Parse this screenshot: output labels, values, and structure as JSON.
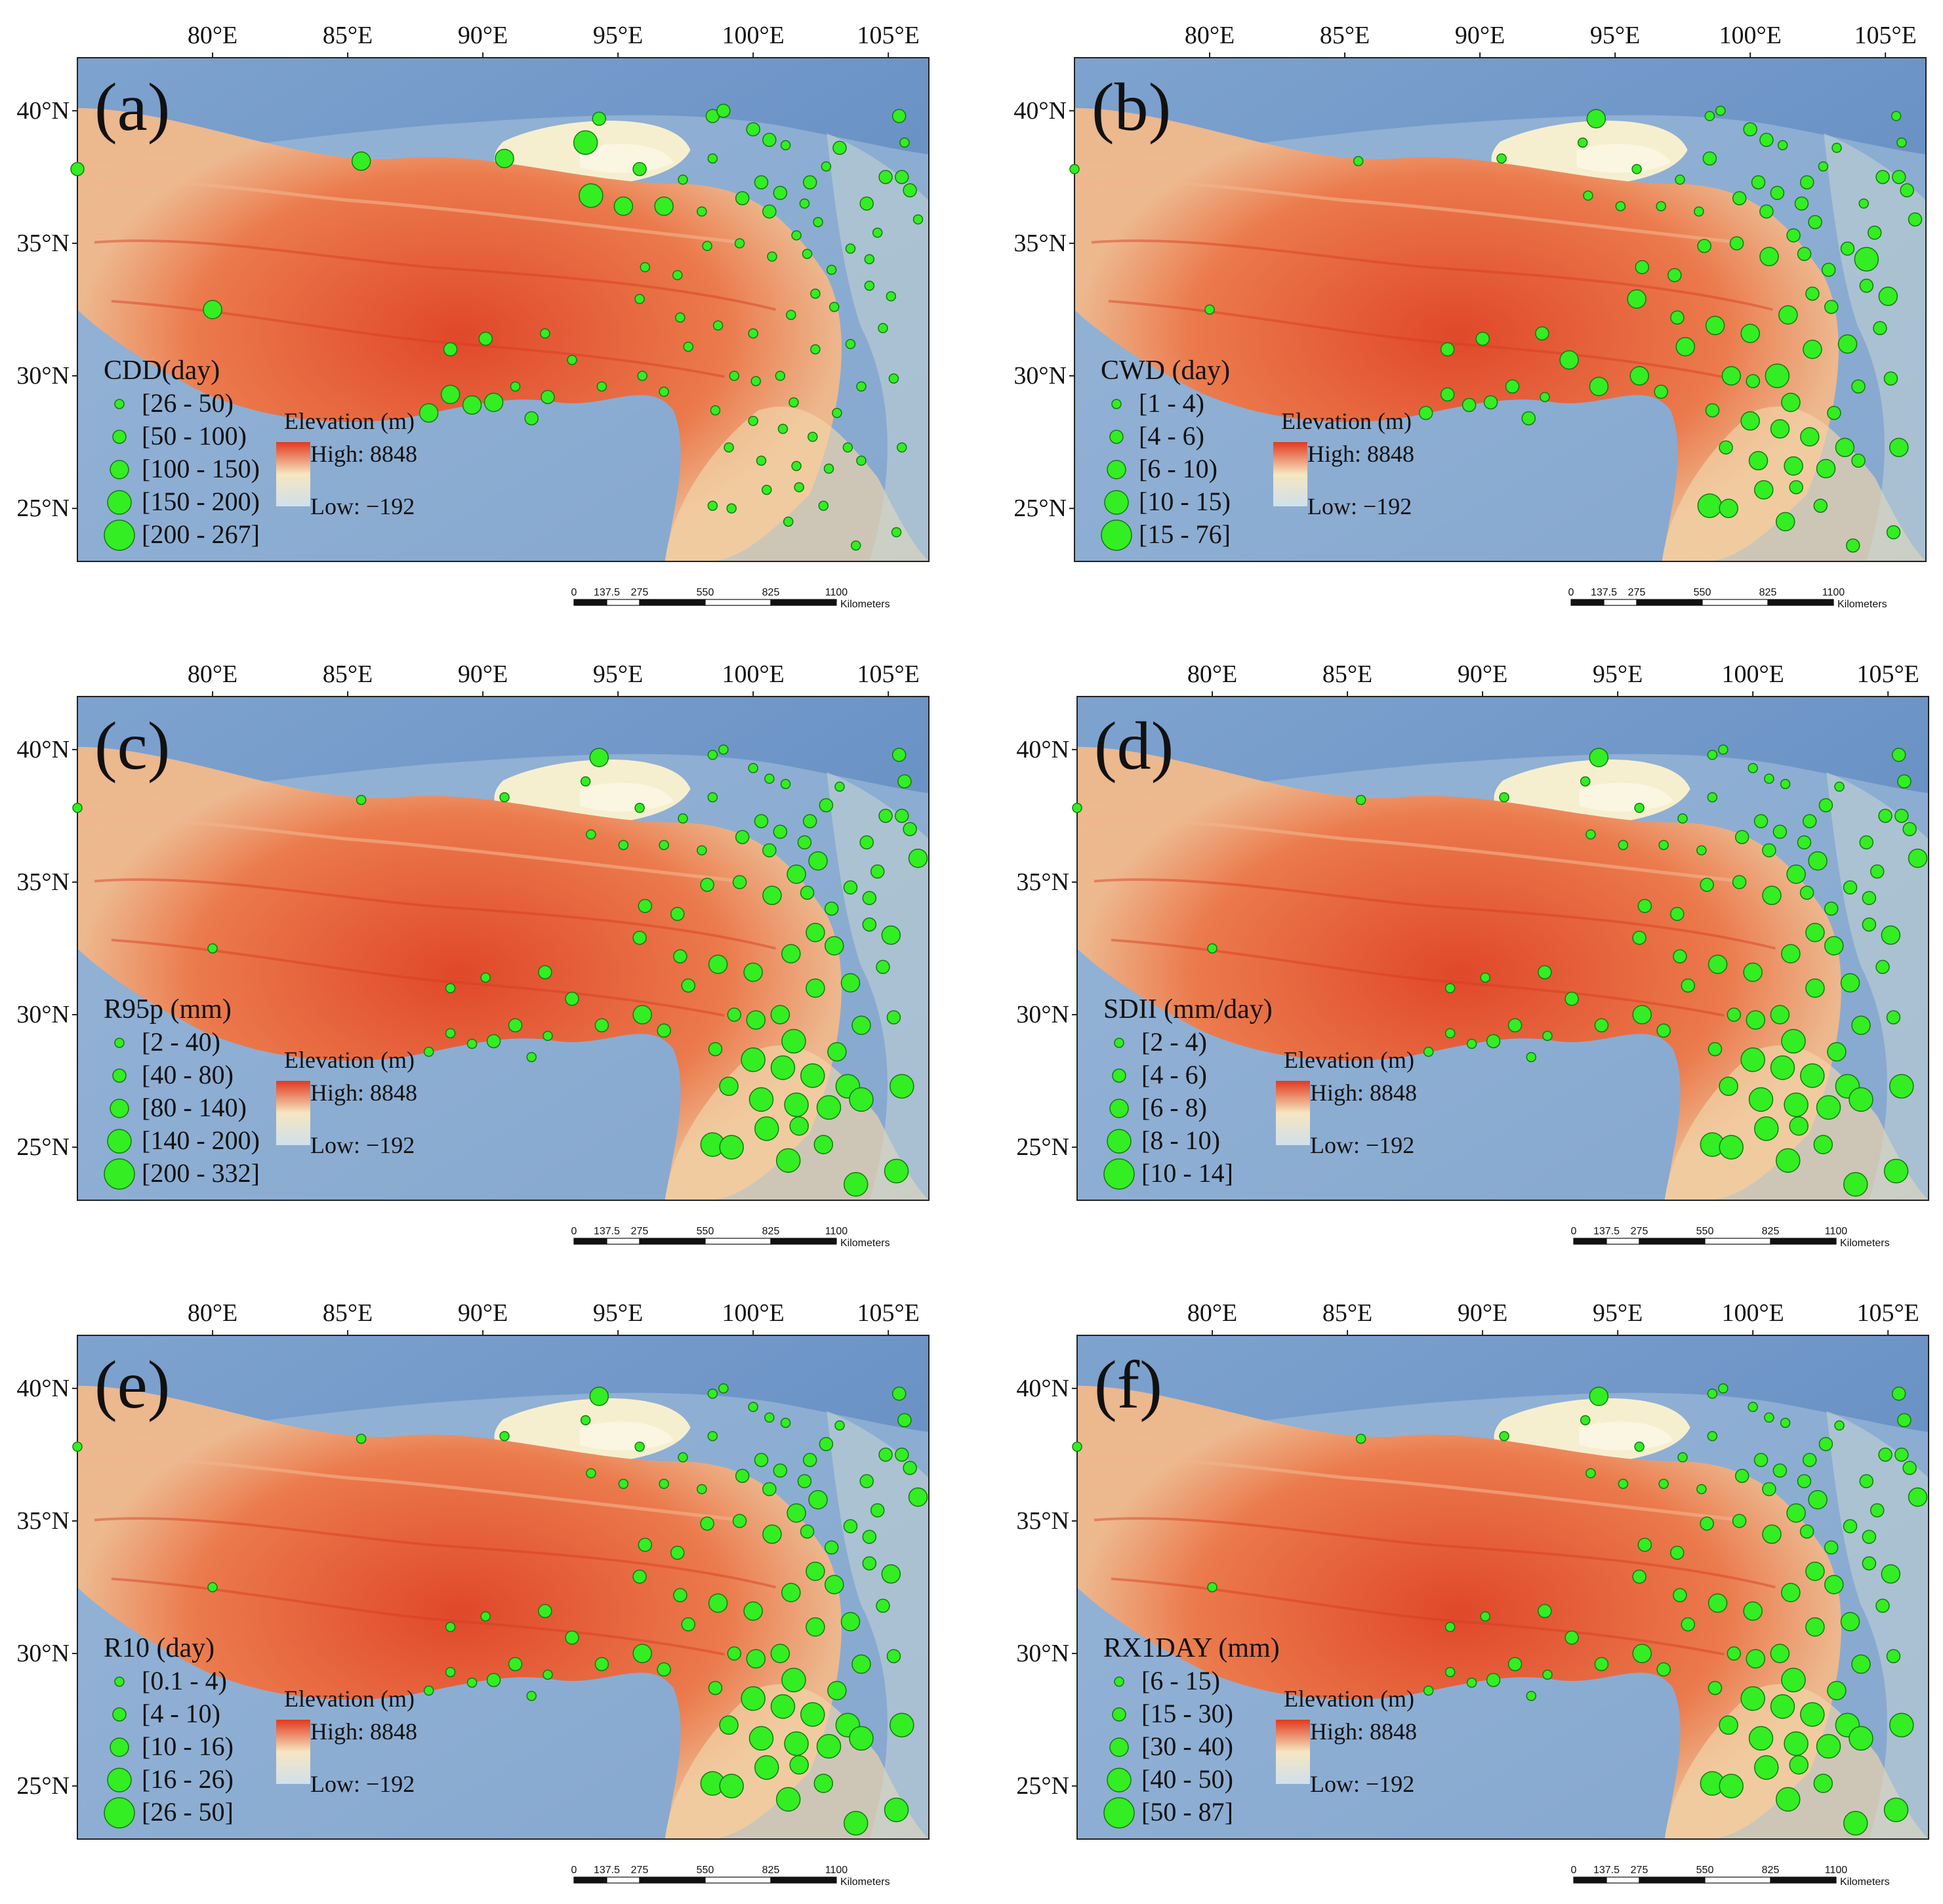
{
  "figure": {
    "lon_ticks": [
      "80°E",
      "85°E",
      "90°E",
      "95°E",
      "100°E",
      "105°E"
    ],
    "lat_ticks": [
      "40°N",
      "35°N",
      "30°N",
      "25°N"
    ],
    "lon_range": [
      75,
      106.5
    ],
    "lat_range": [
      23,
      42
    ],
    "elevation_legend": {
      "title": "Elevation (m)",
      "high": "High: 8848",
      "low": "Low: −192"
    },
    "scalebar": {
      "ticks": [
        "0",
        "137.5",
        "275",
        "550",
        "825",
        "1100"
      ],
      "unit": "Kilometers"
    },
    "colors": {
      "station_fill": "#33ee22",
      "station_stroke": "#137a10",
      "ramp_high": "#e23a1f",
      "ramp_mid": "#f6e6c0",
      "ramp_low": "#cfe0ec"
    }
  },
  "panels": [
    {
      "label": "(a)",
      "legend_title": "CDD(day)",
      "classes": [
        "[26 - 50)",
        "[50 - 100)",
        "[100 - 150)",
        "[150 - 200)",
        "[200 - 267]"
      ]
    },
    {
      "label": "(b)",
      "legend_title": "CWD (day)",
      "classes": [
        "[1 - 4)",
        "[4 - 6)",
        "[6 - 10)",
        "[10 - 15)",
        "[15 - 76]"
      ]
    },
    {
      "label": "(c)",
      "legend_title": "R95p (mm)",
      "classes": [
        "[2 - 40)",
        "[40 - 80)",
        "[80 - 140)",
        "[140 - 200)",
        "[200 - 332]"
      ]
    },
    {
      "label": "(d)",
      "legend_title": "SDII (mm/day)",
      "classes": [
        "[2 - 4)",
        "[4 - 6)",
        "[6 - 8)",
        "[8 - 10)",
        "[10 - 14]"
      ]
    },
    {
      "label": "(e)",
      "legend_title": "R10 (day)",
      "classes": [
        "[0.1 - 4)",
        "[4 - 10)",
        "[10 - 16)",
        "[16 - 26)",
        "[26 - 50]"
      ]
    },
    {
      "label": "(f)",
      "legend_title": "RX1DAY (mm)",
      "classes": [
        "[6 - 15)",
        "[15 - 30)",
        "[30 - 40)",
        "[40 - 50)",
        "[50 - 87]"
      ]
    }
  ],
  "stations": [
    {
      "lon": 75.0,
      "lat": 37.8,
      "cls": [
        2,
        1,
        1,
        1,
        1,
        1
      ]
    },
    {
      "lon": 80.0,
      "lat": 32.5,
      "cls": [
        3,
        1,
        1,
        1,
        1,
        1
      ]
    },
    {
      "lon": 85.5,
      "lat": 38.1,
      "cls": [
        3,
        1,
        1,
        1,
        1,
        1
      ]
    },
    {
      "lon": 90.8,
      "lat": 38.2,
      "cls": [
        3,
        1,
        1,
        1,
        1,
        1
      ]
    },
    {
      "lon": 93.8,
      "lat": 38.8,
      "cls": [
        4,
        1,
        1,
        1,
        1,
        1
      ]
    },
    {
      "lon": 94.3,
      "lat": 39.7,
      "cls": [
        2,
        3,
        3,
        3,
        3,
        3
      ]
    },
    {
      "lon": 94.0,
      "lat": 36.8,
      "cls": [
        4,
        1,
        1,
        1,
        1,
        1
      ]
    },
    {
      "lon": 95.2,
      "lat": 36.4,
      "cls": [
        3,
        1,
        1,
        1,
        1,
        1
      ]
    },
    {
      "lon": 96.7,
      "lat": 36.4,
      "cls": [
        3,
        1,
        1,
        1,
        1,
        1
      ]
    },
    {
      "lon": 95.8,
      "lat": 37.8,
      "cls": [
        2,
        1,
        1,
        1,
        1,
        1
      ]
    },
    {
      "lon": 97.4,
      "lat": 37.4,
      "cls": [
        1,
        1,
        1,
        1,
        1,
        1
      ]
    },
    {
      "lon": 98.1,
      "lat": 36.2,
      "cls": [
        1,
        1,
        1,
        1,
        1,
        1
      ]
    },
    {
      "lon": 98.5,
      "lat": 39.8,
      "cls": [
        2,
        1,
        1,
        1,
        1,
        1
      ]
    },
    {
      "lon": 98.9,
      "lat": 40.0,
      "cls": [
        2,
        1,
        1,
        1,
        1,
        1
      ]
    },
    {
      "lon": 100.0,
      "lat": 39.3,
      "cls": [
        2,
        2,
        1,
        1,
        1,
        1
      ]
    },
    {
      "lon": 100.6,
      "lat": 38.9,
      "cls": [
        2,
        2,
        1,
        1,
        1,
        1
      ]
    },
    {
      "lon": 101.2,
      "lat": 38.7,
      "cls": [
        1,
        1,
        1,
        1,
        1,
        1
      ]
    },
    {
      "lon": 102.7,
      "lat": 37.9,
      "cls": [
        1,
        1,
        2,
        2,
        2,
        2
      ]
    },
    {
      "lon": 103.2,
      "lat": 38.6,
      "cls": [
        2,
        1,
        1,
        1,
        1,
        1
      ]
    },
    {
      "lon": 104.2,
      "lat": 36.5,
      "cls": [
        2,
        1,
        2,
        2,
        2,
        2
      ]
    },
    {
      "lon": 104.9,
      "lat": 37.5,
      "cls": [
        2,
        2,
        2,
        2,
        2,
        2
      ]
    },
    {
      "lon": 105.5,
      "lat": 37.5,
      "cls": [
        2,
        2,
        2,
        2,
        2,
        2
      ]
    },
    {
      "lon": 105.4,
      "lat": 39.8,
      "cls": [
        2,
        1,
        2,
        2,
        2,
        2
      ]
    },
    {
      "lon": 105.6,
      "lat": 38.8,
      "cls": [
        1,
        1,
        2,
        2,
        2,
        2
      ]
    },
    {
      "lon": 105.8,
      "lat": 37.0,
      "cls": [
        2,
        2,
        2,
        2,
        2,
        2
      ]
    },
    {
      "lon": 106.1,
      "lat": 35.9,
      "cls": [
        1,
        2,
        3,
        3,
        3,
        3
      ]
    },
    {
      "lon": 104.6,
      "lat": 35.4,
      "cls": [
        1,
        2,
        2,
        2,
        2,
        2
      ]
    },
    {
      "lon": 103.6,
      "lat": 34.8,
      "cls": [
        1,
        2,
        2,
        2,
        2,
        2
      ]
    },
    {
      "lon": 104.3,
      "lat": 33.4,
      "cls": [
        1,
        2,
        2,
        2,
        2,
        2
      ]
    },
    {
      "lon": 102.9,
      "lat": 34.0,
      "cls": [
        1,
        2,
        2,
        2,
        2,
        2
      ]
    },
    {
      "lon": 101.6,
      "lat": 35.3,
      "cls": [
        1,
        2,
        3,
        3,
        3,
        3
      ]
    },
    {
      "lon": 101.9,
      "lat": 36.5,
      "cls": [
        1,
        2,
        2,
        2,
        2,
        2
      ]
    },
    {
      "lon": 100.6,
      "lat": 36.2,
      "cls": [
        2,
        2,
        2,
        2,
        2,
        2
      ]
    },
    {
      "lon": 99.6,
      "lat": 36.7,
      "cls": [
        2,
        2,
        2,
        2,
        2,
        2
      ]
    },
    {
      "lon": 98.5,
      "lat": 38.2,
      "cls": [
        1,
        2,
        1,
        1,
        1,
        1
      ]
    },
    {
      "lon": 100.3,
      "lat": 37.3,
      "cls": [
        2,
        2,
        2,
        2,
        2,
        2
      ]
    },
    {
      "lon": 101.0,
      "lat": 36.9,
      "cls": [
        2,
        2,
        2,
        2,
        2,
        2
      ]
    },
    {
      "lon": 102.1,
      "lat": 37.3,
      "cls": [
        2,
        2,
        2,
        2,
        2,
        2
      ]
    },
    {
      "lon": 102.4,
      "lat": 35.8,
      "cls": [
        1,
        2,
        3,
        3,
        3,
        3
      ]
    },
    {
      "lon": 102.0,
      "lat": 34.6,
      "cls": [
        1,
        2,
        2,
        2,
        2,
        2
      ]
    },
    {
      "lon": 100.7,
      "lat": 34.5,
      "cls": [
        1,
        3,
        3,
        3,
        3,
        3
      ]
    },
    {
      "lon": 99.5,
      "lat": 35.0,
      "cls": [
        1,
        2,
        2,
        2,
        2,
        2
      ]
    },
    {
      "lon": 98.3,
      "lat": 34.9,
      "cls": [
        1,
        2,
        2,
        2,
        2,
        2
      ]
    },
    {
      "lon": 97.2,
      "lat": 33.8,
      "cls": [
        1,
        2,
        2,
        2,
        2,
        2
      ]
    },
    {
      "lon": 96.0,
      "lat": 34.1,
      "cls": [
        1,
        2,
        2,
        2,
        2,
        2
      ]
    },
    {
      "lon": 95.8,
      "lat": 32.9,
      "cls": [
        1,
        3,
        2,
        2,
        2,
        2
      ]
    },
    {
      "lon": 97.3,
      "lat": 32.2,
      "cls": [
        1,
        2,
        2,
        2,
        2,
        2
      ]
    },
    {
      "lon": 98.7,
      "lat": 31.9,
      "cls": [
        1,
        3,
        3,
        3,
        3,
        3
      ]
    },
    {
      "lon": 100.0,
      "lat": 31.6,
      "cls": [
        1,
        3,
        3,
        3,
        3,
        3
      ]
    },
    {
      "lon": 101.4,
      "lat": 32.3,
      "cls": [
        1,
        3,
        3,
        3,
        3,
        3
      ]
    },
    {
      "lon": 102.3,
      "lat": 33.1,
      "cls": [
        1,
        2,
        3,
        3,
        3,
        3
      ]
    },
    {
      "lon": 103.0,
      "lat": 32.6,
      "cls": [
        1,
        2,
        3,
        3,
        3,
        3
      ]
    },
    {
      "lon": 103.6,
      "lat": 31.2,
      "cls": [
        1,
        3,
        3,
        3,
        3,
        3
      ]
    },
    {
      "lon": 102.3,
      "lat": 31.0,
      "cls": [
        1,
        3,
        3,
        3,
        3,
        3
      ]
    },
    {
      "lon": 101.0,
      "lat": 30.0,
      "cls": [
        1,
        4,
        3,
        3,
        3,
        3
      ]
    },
    {
      "lon": 99.3,
      "lat": 30.0,
      "cls": [
        1,
        3,
        2,
        2,
        2,
        2
      ]
    },
    {
      "lon": 97.6,
      "lat": 31.1,
      "cls": [
        1,
        3,
        2,
        2,
        2,
        2
      ]
    },
    {
      "lon": 95.9,
      "lat": 30.0,
      "cls": [
        1,
        3,
        3,
        3,
        3,
        3
      ]
    },
    {
      "lon": 94.4,
      "lat": 29.6,
      "cls": [
        1,
        3,
        2,
        2,
        2,
        2
      ]
    },
    {
      "lon": 93.3,
      "lat": 30.6,
      "cls": [
        1,
        3,
        2,
        2,
        2,
        2
      ]
    },
    {
      "lon": 92.3,
      "lat": 31.6,
      "cls": [
        1,
        2,
        2,
        2,
        2,
        2
      ]
    },
    {
      "lon": 91.2,
      "lat": 29.6,
      "cls": [
        1,
        2,
        2,
        2,
        2,
        2
      ]
    },
    {
      "lon": 90.4,
      "lat": 29.0,
      "cls": [
        3,
        2,
        2,
        2,
        2,
        2
      ]
    },
    {
      "lon": 89.6,
      "lat": 28.9,
      "cls": [
        3,
        2,
        1,
        1,
        1,
        1
      ]
    },
    {
      "lon": 88.8,
      "lat": 29.3,
      "cls": [
        3,
        2,
        1,
        1,
        1,
        1
      ]
    },
    {
      "lon": 88.0,
      "lat": 28.6,
      "cls": [
        3,
        2,
        1,
        1,
        1,
        1
      ]
    },
    {
      "lon": 88.8,
      "lat": 31.0,
      "cls": [
        2,
        2,
        1,
        1,
        1,
        1
      ]
    },
    {
      "lon": 90.1,
      "lat": 31.4,
      "cls": [
        2,
        2,
        1,
        1,
        1,
        1
      ]
    },
    {
      "lon": 91.8,
      "lat": 28.4,
      "cls": [
        2,
        2,
        1,
        1,
        1,
        1
      ]
    },
    {
      "lon": 92.4,
      "lat": 29.2,
      "cls": [
        2,
        1,
        1,
        1,
        1,
        1
      ]
    },
    {
      "lon": 100.0,
      "lat": 28.3,
      "cls": [
        1,
        3,
        4,
        4,
        4,
        4
      ]
    },
    {
      "lon": 101.1,
      "lat": 28.0,
      "cls": [
        1,
        3,
        4,
        4,
        4,
        4
      ]
    },
    {
      "lon": 102.2,
      "lat": 27.7,
      "cls": [
        1,
        3,
        4,
        4,
        4,
        4
      ]
    },
    {
      "lon": 103.1,
      "lat": 28.6,
      "cls": [
        1,
        2,
        3,
        3,
        3,
        3
      ]
    },
    {
      "lon": 103.5,
      "lat": 27.3,
      "cls": [
        1,
        3,
        4,
        4,
        4,
        4
      ]
    },
    {
      "lon": 104.0,
      "lat": 26.8,
      "cls": [
        1,
        2,
        4,
        4,
        4,
        4
      ]
    },
    {
      "lon": 102.8,
      "lat": 26.5,
      "cls": [
        1,
        3,
        4,
        4,
        4,
        4
      ]
    },
    {
      "lon": 101.6,
      "lat": 26.6,
      "cls": [
        1,
        3,
        4,
        4,
        4,
        4
      ]
    },
    {
      "lon": 100.3,
      "lat": 26.8,
      "cls": [
        1,
        3,
        4,
        4,
        4,
        4
      ]
    },
    {
      "lon": 99.1,
      "lat": 27.3,
      "cls": [
        1,
        2,
        3,
        3,
        3,
        3
      ]
    },
    {
      "lon": 100.5,
      "lat": 25.7,
      "cls": [
        1,
        3,
        4,
        4,
        4,
        4
      ]
    },
    {
      "lon": 101.7,
      "lat": 25.8,
      "cls": [
        1,
        2,
        3,
        3,
        3,
        3
      ]
    },
    {
      "lon": 98.5,
      "lat": 25.1,
      "cls": [
        1,
        4,
        4,
        4,
        4,
        4
      ]
    },
    {
      "lon": 99.2,
      "lat": 25.0,
      "cls": [
        1,
        3,
        4,
        4,
        4,
        4
      ]
    },
    {
      "lon": 101.3,
      "lat": 24.5,
      "cls": [
        1,
        3,
        4,
        4,
        4,
        4
      ]
    },
    {
      "lon": 102.6,
      "lat": 25.1,
      "cls": [
        1,
        2,
        3,
        3,
        3,
        3
      ]
    },
    {
      "lon": 103.8,
      "lat": 23.6,
      "cls": [
        1,
        2,
        4,
        4,
        4,
        4
      ]
    },
    {
      "lon": 105.3,
      "lat": 24.1,
      "cls": [
        1,
        2,
        4,
        4,
        4,
        4
      ]
    },
    {
      "lon": 105.5,
      "lat": 27.3,
      "cls": [
        1,
        3,
        4,
        4,
        4,
        4
      ]
    },
    {
      "lon": 101.5,
      "lat": 29.0,
      "cls": [
        1,
        3,
        4,
        4,
        4,
        4
      ]
    },
    {
      "lon": 100.1,
      "lat": 29.8,
      "cls": [
        1,
        2,
        3,
        3,
        3,
        3
      ]
    },
    {
      "lon": 98.6,
      "lat": 28.7,
      "cls": [
        1,
        2,
        2,
        2,
        2,
        2
      ]
    },
    {
      "lon": 96.7,
      "lat": 29.4,
      "cls": [
        1,
        2,
        2,
        2,
        2,
        2
      ]
    },
    {
      "lon": 104.0,
      "lat": 29.6,
      "cls": [
        1,
        2,
        3,
        3,
        3,
        3
      ]
    },
    {
      "lon": 105.2,
      "lat": 29.9,
      "cls": [
        1,
        2,
        2,
        2,
        2,
        2
      ]
    },
    {
      "lon": 104.8,
      "lat": 31.8,
      "cls": [
        1,
        2,
        2,
        2,
        2,
        2
      ]
    },
    {
      "lon": 105.1,
      "lat": 33.0,
      "cls": [
        1,
        3,
        3,
        3,
        3,
        3
      ]
    },
    {
      "lon": 104.3,
      "lat": 34.4,
      "cls": [
        1,
        4,
        2,
        2,
        2,
        2
      ]
    }
  ]
}
